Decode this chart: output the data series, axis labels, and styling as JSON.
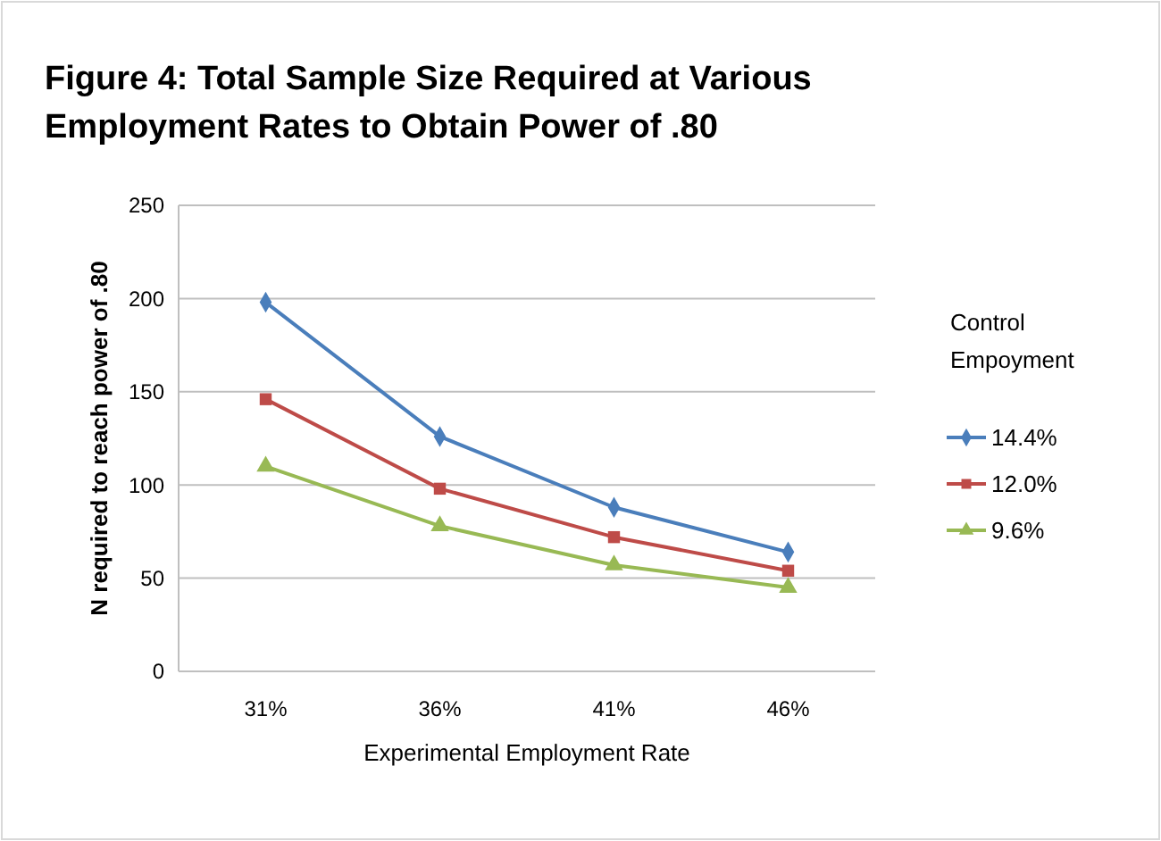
{
  "chart_data": {
    "type": "line",
    "title": "Figure 4: Total Sample Size Required  at Various Employment Rates to Obtain Power of .80",
    "xlabel": "Experimental Employment Rate",
    "ylabel": "N required to reach power of .80",
    "legend_title": "Control Empoyment",
    "categories": [
      "31%",
      "36%",
      "41%",
      "46%"
    ],
    "series": [
      {
        "name": "14.4%",
        "color": "#4a7ebb",
        "marker": "diamond",
        "values": [
          198,
          126,
          88,
          64
        ]
      },
      {
        "name": "12.0%",
        "color": "#be4b48",
        "marker": "square",
        "values": [
          146,
          98,
          72,
          54
        ]
      },
      {
        "name": "9.6%",
        "color": "#98b954",
        "marker": "triangle",
        "values": [
          110,
          78,
          57,
          45
        ]
      }
    ],
    "ylim": [
      0,
      250
    ],
    "yticks": [
      0,
      50,
      100,
      150,
      200,
      250
    ],
    "grid": "y",
    "legend": "right"
  }
}
